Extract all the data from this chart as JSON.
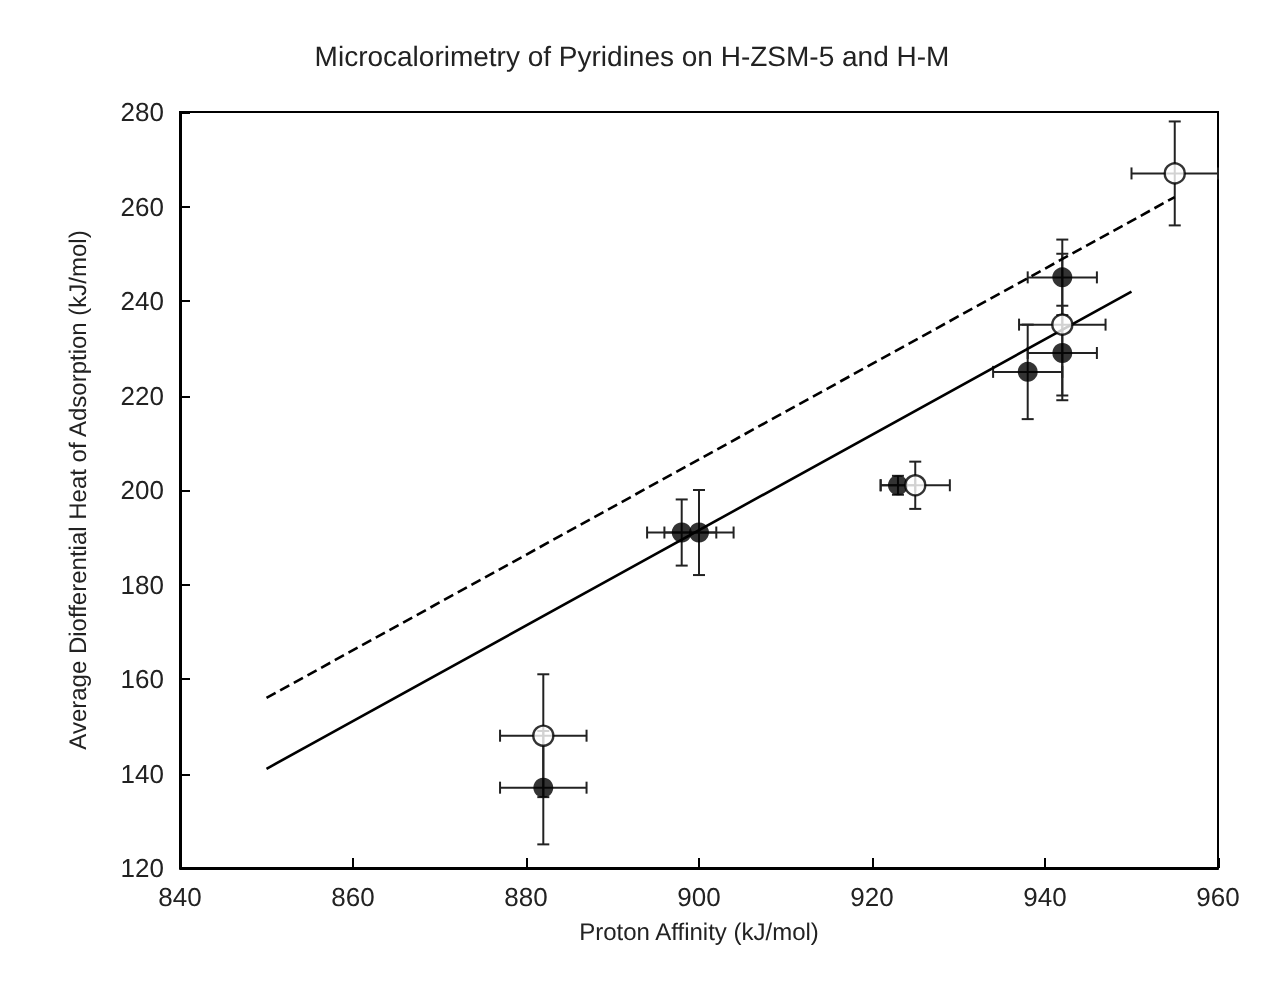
{
  "chart_data": {
    "type": "scatter",
    "title": "Microcalorimetry of Pyridines on H-ZSM-5 and H-M",
    "xlabel": "Proton Affinity (kJ/mol)",
    "ylabel": "Average Diofferential Heat of Adsorption (kJ/mol)",
    "xlim": [
      840,
      960
    ],
    "xticks": [
      840,
      860,
      880,
      900,
      920,
      940,
      960
    ],
    "ylim": [
      120,
      280
    ],
    "yticks": [
      120,
      140,
      160,
      180,
      200,
      220,
      240,
      260,
      280
    ],
    "grid": false,
    "series": [
      {
        "color": "#000000",
        "marker": "circle",
        "x": [
          882,
          898,
          900,
          923,
          938,
          942,
          942
        ],
        "values": [
          137,
          191,
          191,
          201,
          225,
          245,
          229
        ],
        "errors": [
          12,
          7,
          9,
          2,
          10,
          8,
          10
        ],
        "xerrors": [
          5,
          4,
          4,
          2,
          4,
          4,
          4
        ]
      },
      {
        "color": "#ffffff",
        "marker": "circle",
        "x": [
          882,
          925,
          942,
          955
        ],
        "values": [
          148,
          201,
          235,
          267
        ],
        "errors": [
          13,
          5,
          15,
          11
        ],
        "xerrors": [
          5,
          4,
          5,
          5
        ]
      },
      {
        "type": "line",
        "color": "#000000",
        "line_style": "solid",
        "marker": "none",
        "x": [
          850,
          950
        ],
        "values": [
          141,
          242
        ]
      },
      {
        "type": "line",
        "color": "#000000",
        "line_style": "dashed",
        "marker": "none",
        "x": [
          850,
          955
        ],
        "values": [
          156,
          262
        ]
      }
    ]
  }
}
